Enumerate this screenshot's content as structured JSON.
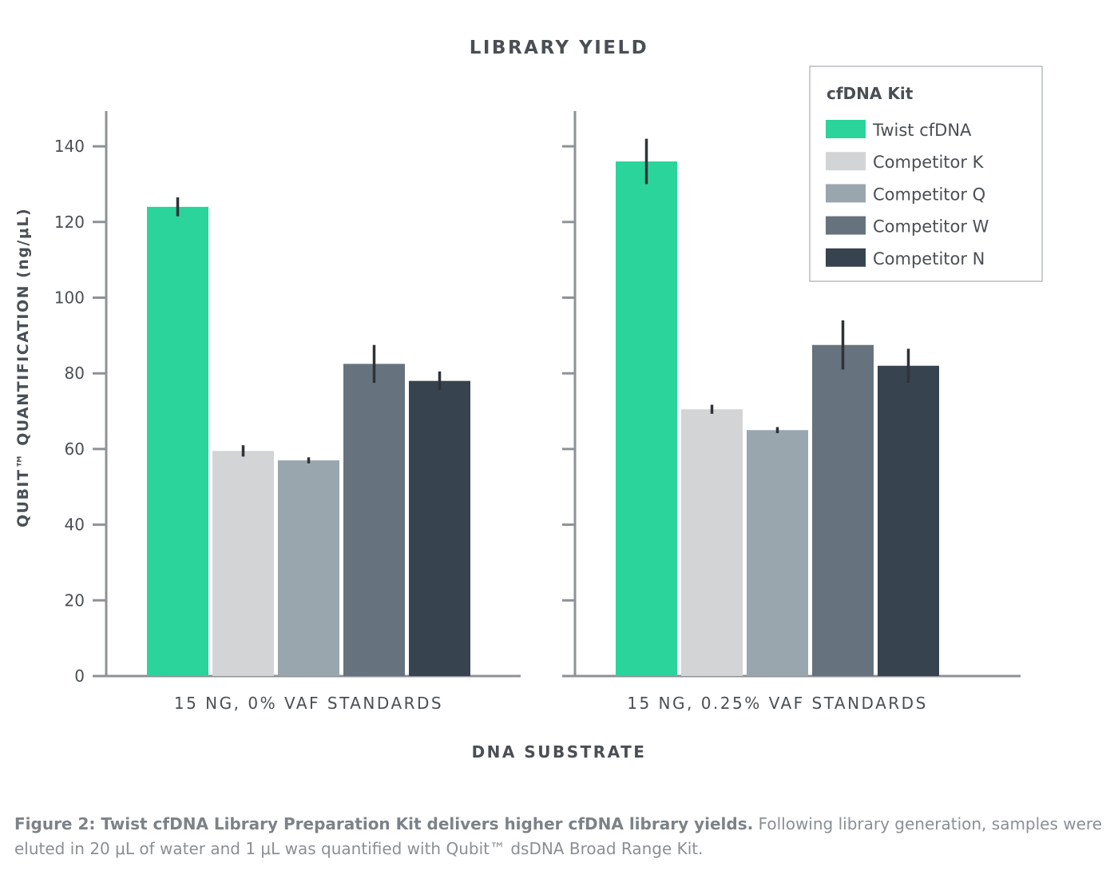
{
  "chart_data": {
    "type": "bar",
    "title": "LIBRARY YIELD",
    "xlabel": "DNA SUBSTRATE",
    "ylabel": "QUBIT™ QUANTIFICATION (ng/μL)",
    "ylim": [
      0,
      150
    ],
    "yticks": [
      0,
      20,
      40,
      60,
      80,
      100,
      120,
      140
    ],
    "categories": [
      "15 NG, 0% VAF STANDARDS",
      "15 NG, 0.25% VAF STANDARDS"
    ],
    "legend": {
      "title": "cfDNA Kit",
      "position": "top-right"
    },
    "series": [
      {
        "name": "Twist cfDNA",
        "color": "#2ad49a",
        "values": [
          124,
          136
        ],
        "error": [
          2.5,
          6
        ]
      },
      {
        "name": "Competitor K",
        "color": "#d2d4d6",
        "values": [
          59.5,
          70.5
        ],
        "error": [
          1.5,
          1.2
        ]
      },
      {
        "name": "Competitor Q",
        "color": "#9aa6ae",
        "values": [
          57,
          65
        ],
        "error": [
          0.8,
          0.8
        ]
      },
      {
        "name": "Competitor W",
        "color": "#66737e",
        "values": [
          82.5,
          87.5
        ],
        "error": [
          5,
          6.5
        ]
      },
      {
        "name": "Competitor N",
        "color": "#37444f",
        "values": [
          78,
          82
        ],
        "error": [
          2.5,
          4.5
        ]
      }
    ]
  },
  "caption": {
    "bold": "Figure 2: Twist cfDNA Library Preparation Kit delivers higher cfDNA library yields.",
    "text": " Following library generation, samples were eluted in 20 μL of water and 1 μL was quantified with Qubit™ dsDNA Broad Range Kit."
  }
}
